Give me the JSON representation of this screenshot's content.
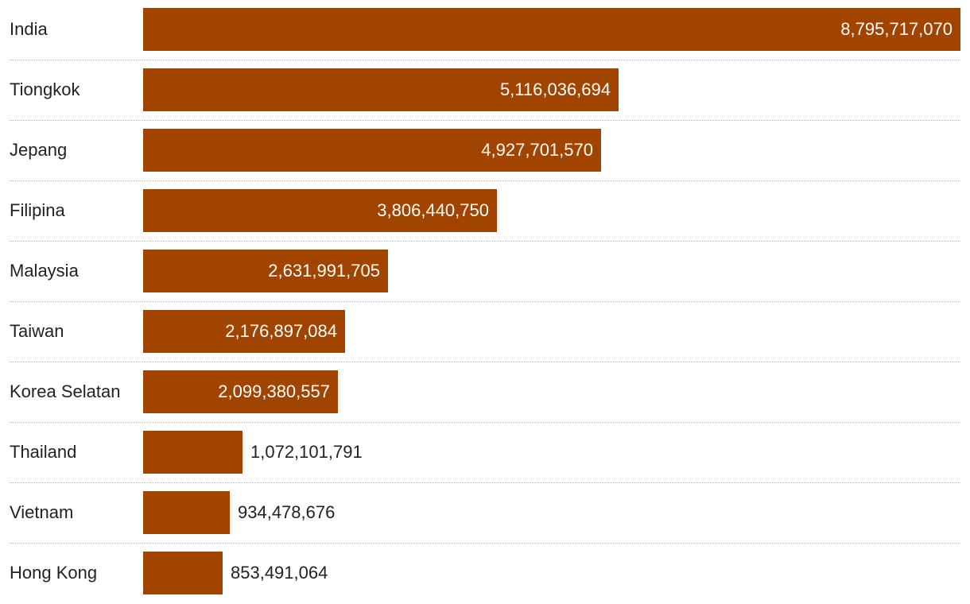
{
  "colors": {
    "bar": "#a04400",
    "label_inside": "#ffffff",
    "label_outside": "#222222"
  },
  "chart_data": {
    "type": "bar",
    "orientation": "horizontal",
    "categories": [
      "India",
      "Tiongkok",
      "Jepang",
      "Filipina",
      "Malaysia",
      "Taiwan",
      "Korea Selatan",
      "Thailand",
      "Vietnam",
      "Hong Kong"
    ],
    "values": [
      8795717070,
      5116036694,
      4927701570,
      3806440750,
      2631991705,
      2176897084,
      2099380557,
      1072101791,
      934478676,
      853491064
    ],
    "value_labels": [
      "8,795,717,070",
      "5,116,036,694",
      "4,927,701,570",
      "3,806,440,750",
      "2,631,991,705",
      "2,176,897,084",
      "2,099,380,557",
      "1,072,101,791",
      "934,478,676",
      "853,491,064"
    ],
    "title": "",
    "xlabel": "",
    "ylabel": "",
    "xlim": [
      0,
      8795717070
    ],
    "grid": false,
    "legend": "none"
  }
}
